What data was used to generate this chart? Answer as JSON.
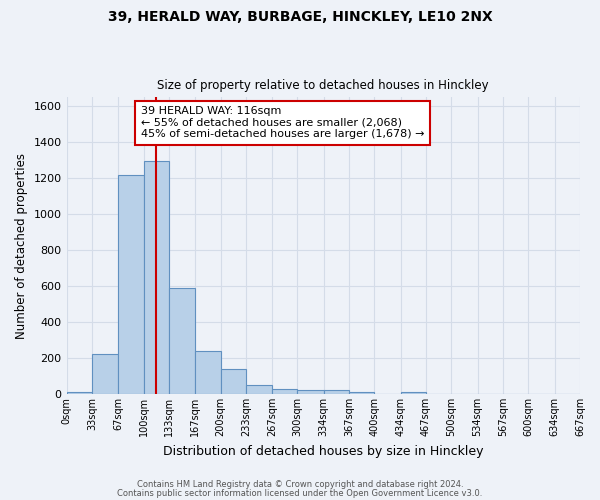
{
  "title1": "39, HERALD WAY, BURBAGE, HINCKLEY, LE10 2NX",
  "title2": "Size of property relative to detached houses in Hinckley",
  "xlabel": "Distribution of detached houses by size in Hinckley",
  "ylabel": "Number of detached properties",
  "bin_edges": [
    0,
    33,
    67,
    100,
    133,
    167,
    200,
    233,
    267,
    300,
    334,
    367,
    400,
    434,
    467,
    500,
    534,
    567,
    600,
    634,
    667
  ],
  "bar_heights": [
    10,
    220,
    1220,
    1295,
    590,
    240,
    140,
    50,
    28,
    25,
    20,
    10,
    0,
    10,
    0,
    0,
    0,
    0,
    0,
    0
  ],
  "bar_color": "#b8d0e8",
  "bar_edge_color": "#6090c0",
  "grid_color": "#d4dce8",
  "background_color": "#eef2f8",
  "red_line_x": 116,
  "annotation_line1": "39 HERALD WAY: 116sqm",
  "annotation_line2": "← 55% of detached houses are smaller (2,068)",
  "annotation_line3": "45% of semi-detached houses are larger (1,678) →",
  "annotation_box_color": "#ffffff",
  "annotation_box_edge_color": "#cc0000",
  "footer_line1": "Contains HM Land Registry data © Crown copyright and database right 2024.",
  "footer_line2": "Contains public sector information licensed under the Open Government Licence v3.0.",
  "ylim": [
    0,
    1650
  ],
  "xlim": [
    0,
    667
  ],
  "tick_labels": [
    "0sqm",
    "33sqm",
    "67sqm",
    "100sqm",
    "133sqm",
    "167sqm",
    "200sqm",
    "233sqm",
    "267sqm",
    "300sqm",
    "334sqm",
    "367sqm",
    "400sqm",
    "434sqm",
    "467sqm",
    "500sqm",
    "534sqm",
    "567sqm",
    "600sqm",
    "634sqm",
    "667sqm"
  ]
}
